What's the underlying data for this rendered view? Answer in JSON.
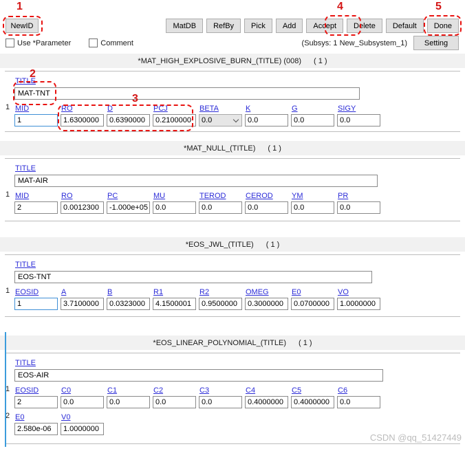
{
  "toolbar": {
    "newid": "NewID",
    "actions": [
      "MatDB",
      "RefBy",
      "Pick",
      "Add",
      "Accept",
      "Delete",
      "Default",
      "Done"
    ],
    "use_parameter": "Use *Parameter",
    "comment": "Comment",
    "subsys": "(Subsys: 1 New_Subsystem_1)",
    "setting": "Setting"
  },
  "annotations": {
    "color": "#e8120f",
    "steps": [
      "1",
      "2",
      "3",
      "4",
      "5"
    ]
  },
  "sections": [
    {
      "header": "*MAT_HIGH_EXPLOSIVE_BURN_(TITLE) (008)",
      "count": "( 1 )",
      "title_label": "TITLE",
      "title_value": "MAT-TNT",
      "rows": [
        {
          "num": "1",
          "fields": [
            {
              "label": "MID",
              "value": "1",
              "focused": true
            },
            {
              "label": "RO",
              "value": "1.6300000"
            },
            {
              "label": "D",
              "value": "0.6390000"
            },
            {
              "label": "PCJ",
              "value": "0.2100000"
            },
            {
              "label": "BETA",
              "value": "0.0",
              "select": true
            },
            {
              "label": "K",
              "value": "0.0"
            },
            {
              "label": "G",
              "value": "0.0"
            },
            {
              "label": "SIGY",
              "value": "0.0"
            }
          ]
        }
      ]
    },
    {
      "header": "*MAT_NULL_(TITLE)",
      "count": "( 1 )",
      "title_label": "TITLE",
      "title_value": "MAT-AIR",
      "rows": [
        {
          "num": "1",
          "fields": [
            {
              "label": "MID",
              "value": "2"
            },
            {
              "label": "RO",
              "value": "0.0012300"
            },
            {
              "label": "PC",
              "value": "-1.000e+05"
            },
            {
              "label": "MU",
              "value": "0.0"
            },
            {
              "label": "TEROD",
              "value": "0.0"
            },
            {
              "label": "CEROD",
              "value": "0.0"
            },
            {
              "label": "YM",
              "value": "0.0"
            },
            {
              "label": "PR",
              "value": "0.0"
            }
          ]
        }
      ]
    },
    {
      "header": "*EOS_JWL_(TITLE)",
      "count": "( 1 )",
      "title_label": "TITLE",
      "title_value": "EOS-TNT",
      "rows": [
        {
          "num": "1",
          "fields": [
            {
              "label": "EOSID",
              "value": "1",
              "focused": true
            },
            {
              "label": "A",
              "value": "3.7100000"
            },
            {
              "label": "B",
              "value": "0.0323000"
            },
            {
              "label": "R1",
              "value": "4.1500001"
            },
            {
              "label": "R2",
              "value": "0.9500000"
            },
            {
              "label": "OMEG",
              "value": "0.3000000"
            },
            {
              "label": "E0",
              "value": "0.0700000"
            },
            {
              "label": "VO",
              "value": "1.0000000"
            }
          ]
        }
      ]
    },
    {
      "header": "*EOS_LINEAR_POLYNOMIAL_(TITLE)",
      "count": "( 1 )",
      "title_label": "TITLE",
      "title_value": "EOS-AIR",
      "rows": [
        {
          "num": "1",
          "fields": [
            {
              "label": "EOSID",
              "value": "2"
            },
            {
              "label": "C0",
              "value": "0.0"
            },
            {
              "label": "C1",
              "value": "0.0"
            },
            {
              "label": "C2",
              "value": "0.0"
            },
            {
              "label": "C3",
              "value": "0.0"
            },
            {
              "label": "C4",
              "value": "0.4000000"
            },
            {
              "label": "C5",
              "value": "0.4000000"
            },
            {
              "label": "C6",
              "value": "0.0"
            }
          ]
        },
        {
          "num": "2",
          "fields": [
            {
              "label": "E0",
              "value": "2.580e-06"
            },
            {
              "label": "V0",
              "value": "1.0000000"
            }
          ]
        }
      ]
    }
  ],
  "watermark": "CSDN @qq_51427449"
}
